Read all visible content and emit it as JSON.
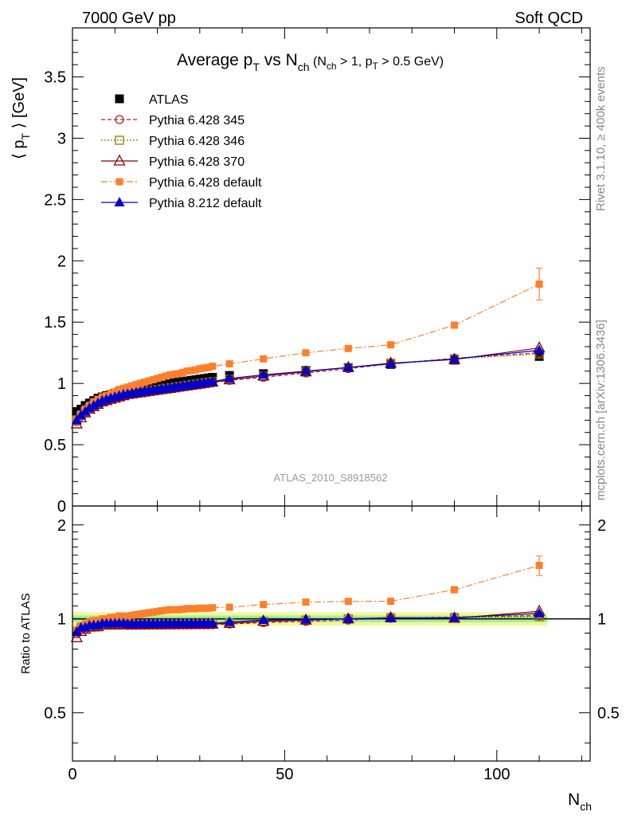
{
  "header": {
    "energy": "7000 GeV pp",
    "process": "Soft QCD"
  },
  "side": {
    "rivet": "Rivet 3.1.10, ≥ 400k events",
    "mcplots": "mcplots.cern.ch [arXiv:1306.3436]"
  },
  "chart_data": {
    "type": "scatter",
    "title": "Average p_T vs N_ch (N_ch > 1, p_T > 0.5 GeV)",
    "xlabel": "N_ch",
    "ylabel": "⟨ p_T ⟩ [GeV]",
    "ratio_ylabel": "Ratio to ATLAS",
    "analysis_label": "ATLAS_2010_S8918562",
    "xlim": [
      0,
      122
    ],
    "ylim": [
      0,
      3.9
    ],
    "ratio_ylim": [
      0.35,
      2.3
    ],
    "xticks": [
      0,
      50,
      100
    ],
    "yticks": [
      0,
      0.5,
      1,
      1.5,
      2,
      2.5,
      3,
      3.5
    ],
    "ratio_yticks": [
      0.5,
      1,
      2
    ],
    "x": [
      1,
      2,
      3,
      4,
      5,
      6,
      7,
      8,
      9,
      10,
      11,
      12,
      13,
      14,
      15,
      16,
      17,
      18,
      19,
      20,
      21,
      22,
      23,
      24,
      25,
      26,
      27,
      28,
      29,
      30,
      31,
      32,
      33,
      37,
      45,
      55,
      65,
      75,
      90,
      110
    ],
    "series": [
      {
        "name": "ATLAS",
        "style": "data",
        "color": "#000000",
        "values": [
          0.77,
          0.79,
          0.82,
          0.84,
          0.86,
          0.88,
          0.89,
          0.9,
          0.91,
          0.92,
          0.93,
          0.94,
          0.95,
          0.955,
          0.96,
          0.965,
          0.97,
          0.975,
          0.98,
          0.985,
          0.99,
          0.995,
          1.0,
          1.005,
          1.01,
          1.015,
          1.02,
          1.025,
          1.03,
          1.035,
          1.04,
          1.045,
          1.05,
          1.065,
          1.08,
          1.105,
          1.13,
          1.155,
          1.19,
          1.22
        ],
        "band_inner": 0.025,
        "band_outer": 0.05
      },
      {
        "name": "Pythia 6.428 345",
        "style": "open-circle",
        "color": "#b22222",
        "dash": "5,3",
        "values": [
          0.69,
          0.73,
          0.76,
          0.79,
          0.81,
          0.83,
          0.85,
          0.86,
          0.87,
          0.88,
          0.89,
          0.9,
          0.905,
          0.91,
          0.915,
          0.92,
          0.925,
          0.93,
          0.935,
          0.94,
          0.945,
          0.95,
          0.955,
          0.96,
          0.965,
          0.97,
          0.975,
          0.98,
          0.985,
          0.99,
          0.995,
          1.0,
          1.005,
          1.025,
          1.05,
          1.085,
          1.12,
          1.16,
          1.205,
          1.25
        ]
      },
      {
        "name": "Pythia 6.428 346",
        "style": "open-square",
        "color": "#8b7d00",
        "dash": "2,2",
        "values": [
          0.7,
          0.74,
          0.77,
          0.8,
          0.82,
          0.84,
          0.86,
          0.87,
          0.88,
          0.89,
          0.9,
          0.91,
          0.915,
          0.92,
          0.925,
          0.93,
          0.935,
          0.94,
          0.945,
          0.95,
          0.955,
          0.96,
          0.965,
          0.97,
          0.975,
          0.98,
          0.985,
          0.99,
          0.995,
          1.0,
          1.005,
          1.01,
          1.015,
          1.035,
          1.06,
          1.095,
          1.13,
          1.165,
          1.2,
          1.24
        ]
      },
      {
        "name": "Pythia 6.428 370",
        "style": "open-triangle",
        "color": "#8b0000",
        "dash": "",
        "values": [
          0.67,
          0.72,
          0.76,
          0.79,
          0.81,
          0.83,
          0.85,
          0.86,
          0.87,
          0.88,
          0.89,
          0.9,
          0.91,
          0.915,
          0.92,
          0.925,
          0.93,
          0.935,
          0.94,
          0.945,
          0.95,
          0.955,
          0.96,
          0.965,
          0.97,
          0.975,
          0.98,
          0.985,
          0.99,
          0.995,
          1.0,
          1.005,
          1.01,
          1.03,
          1.06,
          1.095,
          1.13,
          1.165,
          1.195,
          1.29
        ]
      },
      {
        "name": "Pythia 6.428 default",
        "style": "filled-square",
        "color": "#ff7f2a",
        "dash": "8,3,2,3",
        "values": [
          0.71,
          0.75,
          0.79,
          0.82,
          0.85,
          0.87,
          0.89,
          0.9,
          0.92,
          0.93,
          0.95,
          0.96,
          0.97,
          0.98,
          0.99,
          1.0,
          1.01,
          1.02,
          1.03,
          1.04,
          1.05,
          1.06,
          1.07,
          1.075,
          1.08,
          1.09,
          1.1,
          1.105,
          1.11,
          1.12,
          1.125,
          1.13,
          1.14,
          1.16,
          1.2,
          1.25,
          1.285,
          1.315,
          1.475,
          1.81
        ]
      },
      {
        "name": "Pythia 8.212 default",
        "style": "filled-triangle",
        "color": "#0000cc",
        "dash": "",
        "values": [
          0.7,
          0.74,
          0.77,
          0.8,
          0.82,
          0.84,
          0.86,
          0.87,
          0.88,
          0.89,
          0.9,
          0.91,
          0.915,
          0.92,
          0.925,
          0.93,
          0.935,
          0.94,
          0.945,
          0.95,
          0.955,
          0.96,
          0.965,
          0.97,
          0.975,
          0.98,
          0.985,
          0.99,
          0.995,
          1.0,
          1.005,
          1.01,
          1.015,
          1.04,
          1.07,
          1.1,
          1.13,
          1.16,
          1.2,
          1.27
        ]
      }
    ],
    "error_bars": {
      "Pythia 6.428 default": {
        "110": 0.13
      }
    }
  }
}
